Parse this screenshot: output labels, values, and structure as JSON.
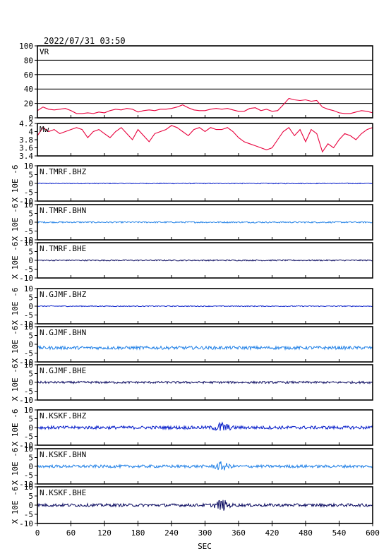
{
  "header": {
    "datetime": "2022/07/31 03:50"
  },
  "colors": {
    "vr": "#e8003c",
    "mw": "#e8003c",
    "BHZ": "#0018c8",
    "BHN": "#1e7fe6",
    "BHE": "#0a0a60"
  },
  "chart_data": {
    "type": "line",
    "xlabel": "SEC",
    "xlim": [
      0,
      600
    ],
    "xticks": [
      0,
      60,
      120,
      180,
      240,
      300,
      360,
      420,
      480,
      540,
      600
    ],
    "panels": [
      {
        "label": "VR",
        "ylim": [
          0,
          100
        ],
        "yticks": [
          0,
          20,
          40,
          60,
          80,
          100
        ],
        "grid": true,
        "color": "vr",
        "series": [
          {
            "x": [
              0,
              10,
              20,
              30,
              40,
              50,
              60,
              70,
              80,
              90,
              100,
              110,
              120,
              130,
              140,
              150,
              160,
              170,
              180,
              190,
              200,
              210,
              220,
              230,
              240,
              250,
              260,
              270,
              280,
              290,
              300,
              310,
              320,
              330,
              340,
              350,
              360,
              370,
              380,
              390,
              400,
              410,
              420,
              430,
              440,
              450,
              460,
              470,
              480,
              490,
              500,
              510,
              520,
              530,
              540,
              550,
              560,
              570,
              580,
              590,
              600
            ],
            "y": [
              10,
              15,
              12,
              11,
              12,
              13,
              10,
              6,
              6,
              7,
              6,
              8,
              7,
              10,
              12,
              11,
              13,
              12,
              8,
              10,
              11,
              10,
              12,
              12,
              13,
              15,
              18,
              14,
              11,
              10,
              10,
              12,
              13,
              12,
              13,
              11,
              9,
              9,
              13,
              14,
              10,
              12,
              9,
              10,
              18,
              27,
              25,
              24,
              25,
              23,
              24,
              15,
              12,
              10,
              7,
              6,
              6,
              8,
              10,
              9,
              7
            ]
          }
        ]
      },
      {
        "label": "Mw",
        "ylim": [
          3.4,
          4.2
        ],
        "yticks": [
          3.4,
          3.6,
          3.8,
          4.0,
          4.2
        ],
        "grid": false,
        "color": "mw",
        "series": [
          {
            "x": [
              0,
              10,
              20,
              30,
              40,
              50,
              60,
              70,
              80,
              90,
              100,
              110,
              120,
              130,
              140,
              150,
              160,
              170,
              180,
              190,
              200,
              210,
              220,
              230,
              240,
              250,
              260,
              270,
              280,
              290,
              300,
              310,
              320,
              330,
              340,
              350,
              360,
              370,
              380,
              390,
              400,
              410,
              420,
              430,
              440,
              450,
              460,
              470,
              480,
              490,
              500,
              510,
              520,
              530,
              540,
              550,
              560,
              570,
              580,
              590,
              600
            ],
            "y": [
              3.9,
              4.1,
              4.0,
              4.05,
              3.95,
              4.0,
              4.05,
              4.1,
              4.05,
              3.85,
              4.0,
              4.05,
              3.95,
              3.85,
              4.0,
              4.1,
              3.95,
              3.8,
              4.05,
              3.9,
              3.75,
              3.95,
              4.0,
              4.05,
              4.15,
              4.1,
              4.0,
              3.9,
              4.05,
              4.1,
              4.0,
              4.1,
              4.05,
              4.05,
              4.1,
              4.0,
              3.85,
              3.75,
              3.7,
              3.65,
              3.6,
              3.55,
              3.6,
              3.8,
              4.0,
              4.1,
              3.9,
              4.05,
              3.75,
              4.05,
              3.95,
              3.5,
              3.7,
              3.6,
              3.8,
              3.95,
              3.9,
              3.8,
              3.95,
              4.05,
              4.1
            ]
          }
        ]
      },
      {
        "label": "N.TMRF.BHZ",
        "ylim": [
          -10,
          10
        ],
        "yticks": [
          -10,
          -5,
          0,
          5,
          10
        ],
        "color": "BHZ",
        "amp": 0.25,
        "burst": 0
      },
      {
        "label": "N.TMRF.BHN",
        "ylim": [
          -10,
          10
        ],
        "yticks": [
          -10,
          -5,
          0,
          5,
          10
        ],
        "color": "BHN",
        "amp": 0.4,
        "burst": 0
      },
      {
        "label": "N.TMRF.BHE",
        "ylim": [
          -10,
          10
        ],
        "yticks": [
          -10,
          -5,
          0,
          5,
          10
        ],
        "color": "BHE",
        "amp": 0.35,
        "burst": 0
      },
      {
        "label": "N.GJMF.BHZ",
        "ylim": [
          -10,
          10
        ],
        "yticks": [
          -10,
          -5,
          0,
          5,
          10
        ],
        "color": "BHZ",
        "amp": 0.25,
        "burst": 0
      },
      {
        "label": "N.GJMF.BHN",
        "ylim": [
          -10,
          10
        ],
        "yticks": [
          -10,
          -5,
          0,
          5,
          10
        ],
        "color": "BHN",
        "amp": 0.9,
        "burst": 0,
        "offset": -2
      },
      {
        "label": "N.GJMF.BHE",
        "ylim": [
          -10,
          10
        ],
        "yticks": [
          -10,
          -5,
          0,
          5,
          10
        ],
        "color": "BHE",
        "amp": 0.6,
        "burst": 0
      },
      {
        "label": "N.KSKF.BHZ",
        "ylim": [
          -10,
          10
        ],
        "yticks": [
          -10,
          -5,
          0,
          5,
          10
        ],
        "color": "BHZ",
        "amp": 0.9,
        "burst": 2.5
      },
      {
        "label": "N.KSKF.BHN",
        "ylim": [
          -10,
          10
        ],
        "yticks": [
          -10,
          -5,
          0,
          5,
          10
        ],
        "color": "BHN",
        "amp": 0.8,
        "burst": 2.0
      },
      {
        "label": "N.KSKF.BHE",
        "ylim": [
          -10,
          10
        ],
        "yticks": [
          -10,
          -5,
          0,
          5,
          10
        ],
        "color": "BHE",
        "amp": 0.8,
        "burst": 2.5
      }
    ],
    "waveform_ylabel": "X 10E -6"
  }
}
